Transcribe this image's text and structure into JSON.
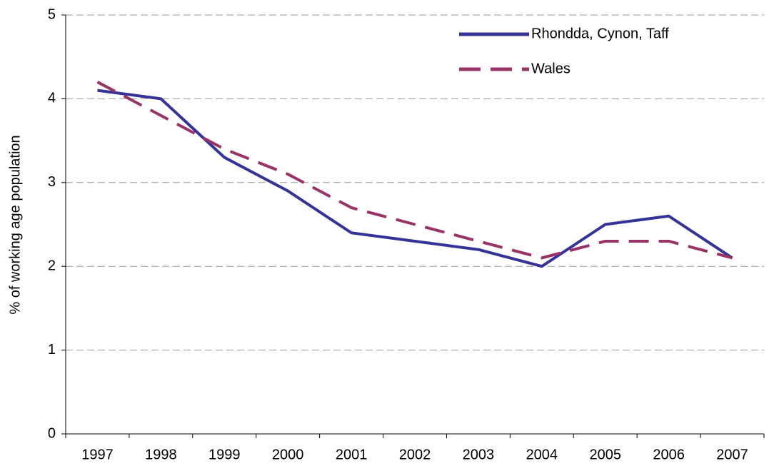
{
  "chart_data": {
    "type": "line",
    "ylabel": "% of working age population",
    "categories": [
      "1997",
      "1998",
      "1999",
      "2000",
      "2001",
      "2002",
      "2003",
      "2004",
      "2005",
      "2006",
      "2007"
    ],
    "series": [
      {
        "name": "Rhondda, Cynon, Taff",
        "color": "#333399",
        "line_style": "solid",
        "values": [
          4.1,
          4.0,
          3.3,
          2.9,
          2.4,
          2.3,
          2.2,
          2.0,
          2.5,
          2.6,
          2.1
        ]
      },
      {
        "name": "Wales",
        "color": "#993366",
        "line_style": "dashed",
        "values": [
          4.2,
          3.8,
          3.4,
          3.1,
          2.7,
          2.5,
          2.3,
          2.1,
          2.3,
          2.3,
          2.1
        ]
      }
    ],
    "ylim": [
      0,
      5
    ],
    "yticks": [
      0,
      1,
      2,
      3,
      4,
      5
    ],
    "grid": true,
    "legend": "upper right"
  }
}
